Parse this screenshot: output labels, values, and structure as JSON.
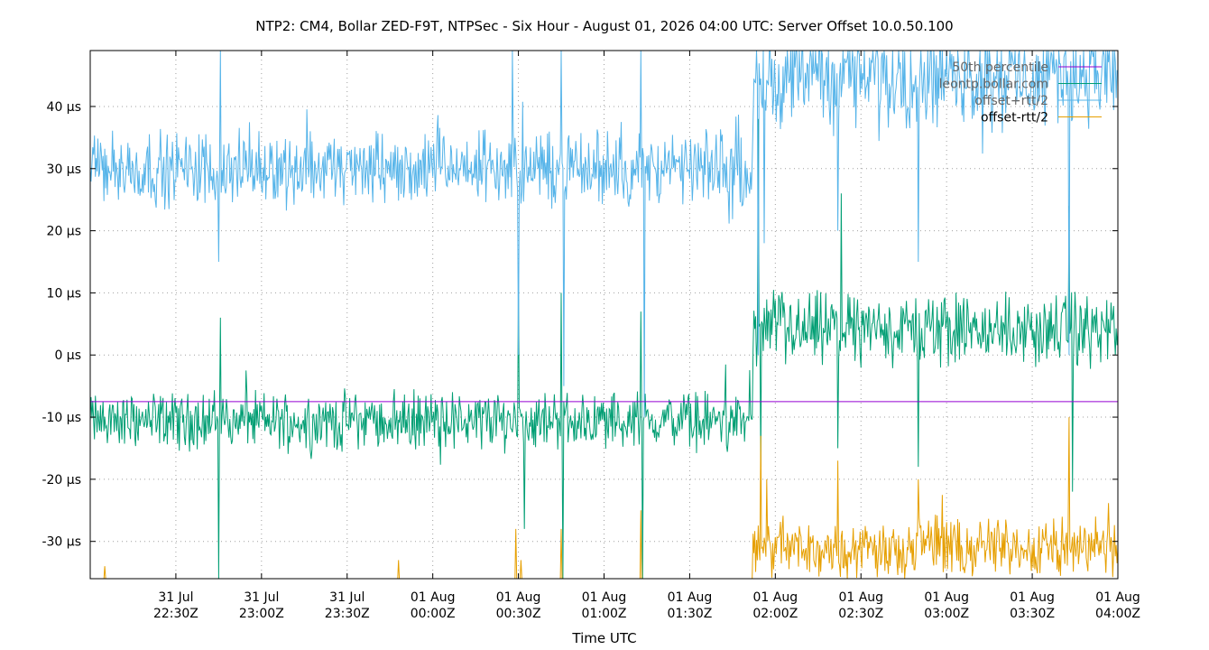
{
  "chart_data": {
    "type": "line",
    "title": "NTP2: CM4, Bollar ZED-F9T, NTPSec - Six Hour - August 01, 2026 04:00 UTC: Server Offset 10.0.50.100",
    "xlabel": "Time UTC",
    "ylabel": "",
    "x_range": [
      "31 Jul 22:00Z",
      "01 Aug 04:00Z"
    ],
    "ylim": [
      -36,
      49
    ],
    "y_unit": "µs",
    "grid": true,
    "legend_position": "top-right",
    "y_ticks": [
      {
        "value": 40,
        "label": "40 µs"
      },
      {
        "value": 30,
        "label": "30 µs"
      },
      {
        "value": 20,
        "label": "20 µs"
      },
      {
        "value": 10,
        "label": "10 µs"
      },
      {
        "value": 0,
        "label": "0 µs"
      },
      {
        "value": -10,
        "label": "-10 µs"
      },
      {
        "value": -20,
        "label": "-20 µs"
      },
      {
        "value": -30,
        "label": "-30 µs"
      }
    ],
    "x_ticks": [
      {
        "minutes": 30,
        "line1": "31 Jul",
        "line2": "22:30Z"
      },
      {
        "minutes": 60,
        "line1": "31 Jul",
        "line2": "23:00Z"
      },
      {
        "minutes": 90,
        "line1": "31 Jul",
        "line2": "23:30Z"
      },
      {
        "minutes": 120,
        "line1": "01 Aug",
        "line2": "00:00Z"
      },
      {
        "minutes": 150,
        "line1": "01 Aug",
        "line2": "00:30Z"
      },
      {
        "minutes": 180,
        "line1": "01 Aug",
        "line2": "01:00Z"
      },
      {
        "minutes": 210,
        "line1": "01 Aug",
        "line2": "01:30Z"
      },
      {
        "minutes": 240,
        "line1": "01 Aug",
        "line2": "02:00Z"
      },
      {
        "minutes": 270,
        "line1": "01 Aug",
        "line2": "02:30Z"
      },
      {
        "minutes": 300,
        "line1": "01 Aug",
        "line2": "03:00Z"
      },
      {
        "minutes": 330,
        "line1": "01 Aug",
        "line2": "03:30Z"
      },
      {
        "minutes": 360,
        "line1": "01 Aug",
        "line2": "04:00Z"
      }
    ],
    "series": [
      {
        "name": "50th percentile",
        "color": "#9400d3",
        "kind": "constant",
        "value": -7.5
      },
      {
        "name": "leontp.bollar.com",
        "color": "#009e73",
        "kind": "noise",
        "segments": [
          {
            "from_min": 0,
            "to_min": 232,
            "mean": -10.5,
            "amp": 5.5
          },
          {
            "from_min": 232,
            "to_min": 360,
            "mean": 4,
            "amp": 7
          }
        ],
        "spikes": [
          {
            "minute": 45,
            "value": -36
          },
          {
            "minute": 45.5,
            "value": 6
          },
          {
            "minute": 150,
            "value": 12
          },
          {
            "minute": 152,
            "value": -28
          },
          {
            "minute": 165,
            "value": 10
          },
          {
            "minute": 165.5,
            "value": -36
          },
          {
            "minute": 193,
            "value": 7
          },
          {
            "minute": 193.5,
            "value": -36
          },
          {
            "minute": 234,
            "value": 38
          },
          {
            "minute": 235,
            "value": -18
          },
          {
            "minute": 262,
            "value": -15
          },
          {
            "minute": 263,
            "value": 26
          },
          {
            "minute": 290,
            "value": -18
          },
          {
            "minute": 343,
            "value": 24
          },
          {
            "minute": 344,
            "value": -22
          }
        ]
      },
      {
        "name": "offset+rtt/2",
        "color": "#56b4e9",
        "kind": "noise",
        "segments": [
          {
            "from_min": 0,
            "to_min": 232,
            "mean": 30,
            "amp": 7
          },
          {
            "from_min": 232,
            "to_min": 360,
            "mean": 45,
            "amp": 10
          }
        ],
        "spikes": [
          {
            "minute": 45,
            "value": 15
          },
          {
            "minute": 45.5,
            "value": 49
          },
          {
            "minute": 148,
            "value": 49
          },
          {
            "minute": 150,
            "value": 0
          },
          {
            "minute": 165,
            "value": 49
          },
          {
            "minute": 166,
            "value": -5
          },
          {
            "minute": 193,
            "value": 49
          },
          {
            "minute": 194,
            "value": -10
          },
          {
            "minute": 234,
            "value": 0
          },
          {
            "minute": 236,
            "value": 18
          },
          {
            "minute": 262,
            "value": 20
          },
          {
            "minute": 290,
            "value": 15
          },
          {
            "minute": 343,
            "value": 0
          },
          {
            "minute": 344,
            "value": 38
          }
        ]
      },
      {
        "name": "offset-rtt/2",
        "color": "#e69f00",
        "kind": "noise",
        "segments": [
          {
            "from_min": 0,
            "to_min": 232,
            "mean": -40,
            "amp": 3
          },
          {
            "from_min": 232,
            "to_min": 360,
            "mean": -31,
            "amp": 6
          }
        ],
        "spikes": [
          {
            "minute": 5,
            "value": -34
          },
          {
            "minute": 108,
            "value": -33
          },
          {
            "minute": 149,
            "value": -28
          },
          {
            "minute": 151,
            "value": -33
          },
          {
            "minute": 165,
            "value": -28
          },
          {
            "minute": 193,
            "value": -25
          },
          {
            "minute": 235,
            "value": -13
          },
          {
            "minute": 237,
            "value": -20
          },
          {
            "minute": 262,
            "value": -17
          },
          {
            "minute": 290,
            "value": -20
          },
          {
            "minute": 343,
            "value": -10
          }
        ]
      }
    ]
  }
}
